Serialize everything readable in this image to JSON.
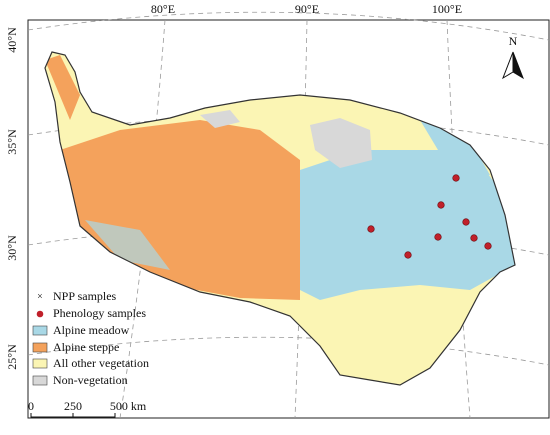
{
  "map": {
    "graticule": {
      "longitude_labels": [
        "80°E",
        "90°E",
        "100°E"
      ],
      "latitude_labels": [
        "40°N",
        "35°N",
        "30°N",
        "25°N"
      ]
    },
    "north_arrow": "N",
    "legend": [
      {
        "label": "NPP samples"
      },
      {
        "label": "Phenology samples"
      },
      {
        "label": "Alpine meadow"
      },
      {
        "label": "Alpine steppe"
      },
      {
        "label": "All other vegetation"
      },
      {
        "label": "Non-vegetation"
      }
    ],
    "scale_bar": {
      "labels": [
        "0",
        "250",
        "500 km"
      ]
    }
  }
}
